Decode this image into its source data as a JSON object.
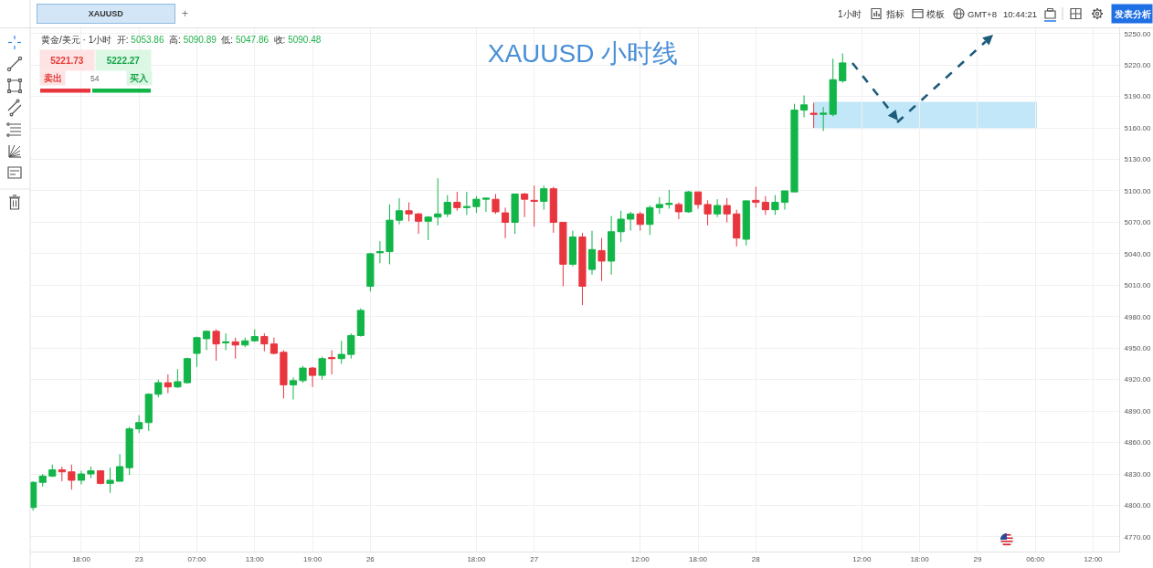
{
  "chart_data": {
    "type": "candlestick",
    "title": "XAUUSD 小时线",
    "annotations": [
      "XAUUSD",
      "+",
      "1小时",
      "指标",
      "模板",
      "GMT+8",
      "10:44:21",
      "发表分析",
      "黄金/美元 · 1小时",
      "开:",
      "5053.86",
      "高:",
      "5090.89",
      "低:",
      "5047.86",
      "收:",
      "5090.48",
      "5221.73",
      "5222.27",
      "卖出",
      "54",
      "买入"
    ],
    "categories": [
      null,
      null,
      null,
      null,
      null,
      "18:00",
      null,
      null,
      null,
      null,
      null,
      "23",
      null,
      null,
      null,
      null,
      null,
      "07:00",
      null,
      null,
      null,
      null,
      null,
      "13:00",
      null,
      null,
      null,
      null,
      null,
      "19:00",
      null,
      null,
      null,
      null,
      null,
      "26",
      null,
      null,
      null,
      null,
      null,
      null,
      null,
      null,
      null,
      null,
      "18:00",
      null,
      null,
      null,
      null,
      null,
      "27",
      null,
      null,
      null,
      null,
      null,
      null,
      null,
      null,
      null,
      null,
      "12:00",
      null,
      null,
      null,
      null,
      null,
      "18:00",
      null,
      null,
      null,
      null,
      null,
      "28",
      null,
      null,
      null,
      null,
      null,
      null,
      null,
      null,
      null,
      null,
      "12:00",
      null,
      null,
      null,
      null,
      null,
      "18:00",
      null,
      null,
      null,
      null,
      null,
      "29",
      null,
      null,
      null,
      null,
      null,
      "06:00",
      null,
      null,
      null,
      null,
      null,
      "12:00",
      null,
      null
    ],
    "ohlc": [
      [
        4798,
        4823,
        4795,
        4822
      ],
      [
        4822,
        4830,
        4818,
        4828
      ],
      [
        4828,
        4839,
        4827,
        4834
      ],
      [
        4834,
        4837,
        4823,
        4832
      ],
      [
        4832,
        4839,
        4815,
        4824
      ],
      [
        4824,
        4833,
        4820,
        4830
      ],
      [
        4830,
        4837,
        4826,
        4833
      ],
      [
        4833,
        4833,
        4820,
        4821
      ],
      [
        4821,
        4836,
        4812,
        4824
      ],
      [
        4823,
        4849,
        4823,
        4837
      ],
      [
        4836,
        4875,
        4829,
        4873
      ],
      [
        4873,
        4886,
        4869,
        4879
      ],
      [
        4879,
        4907,
        4871,
        4906
      ],
      [
        4906,
        4920,
        4903,
        4917
      ],
      [
        4917,
        4925,
        4907,
        4913
      ],
      [
        4913,
        4930,
        4912,
        4918
      ],
      [
        4917,
        4941,
        4916,
        4940
      ],
      [
        4945,
        4961,
        4932,
        4960
      ],
      [
        4959,
        4967,
        4948,
        4966
      ],
      [
        4966,
        4968,
        4938,
        4954
      ],
      [
        4955,
        4964,
        4948,
        4956
      ],
      [
        4956,
        4960,
        4940,
        4953
      ],
      [
        4953,
        4960,
        4951,
        4957
      ],
      [
        4957,
        4968,
        4956,
        4961
      ],
      [
        4961,
        4964,
        4947,
        4954
      ],
      [
        4954,
        4960,
        4944,
        4945
      ],
      [
        4946,
        4948,
        4902,
        4915
      ],
      [
        4915,
        4922,
        4901,
        4919
      ],
      [
        4919,
        4933,
        4917,
        4931
      ],
      [
        4931,
        4932,
        4913,
        4924
      ],
      [
        4924,
        4942,
        4920,
        4940
      ],
      [
        4941,
        4948,
        4925,
        4940
      ],
      [
        4940,
        4957,
        4935,
        4944
      ],
      [
        4944,
        4964,
        4940,
        4962
      ],
      [
        4962,
        4988,
        4961,
        4986
      ],
      [
        5009,
        5041,
        5004,
        5040
      ],
      [
        5041,
        5052,
        5031,
        5042
      ],
      [
        5042,
        5087,
        5030,
        5072
      ],
      [
        5072,
        5093,
        5068,
        5081
      ],
      [
        5081,
        5089,
        5071,
        5078
      ],
      [
        5078,
        5079,
        5059,
        5071
      ],
      [
        5071,
        5076,
        5053,
        5075
      ],
      [
        5075,
        5112,
        5067,
        5078
      ],
      [
        5078,
        5096,
        5075,
        5089
      ],
      [
        5089,
        5099,
        5081,
        5084
      ],
      [
        5084,
        5099,
        5077,
        5085
      ],
      [
        5085,
        5095,
        5079,
        5092
      ],
      [
        5092,
        5093,
        5080,
        5093
      ],
      [
        5092,
        5097,
        5078,
        5080
      ],
      [
        5079,
        5084,
        5055,
        5070
      ],
      [
        5070,
        5097,
        5059,
        5097
      ],
      [
        5097,
        5098,
        5075,
        5092
      ],
      [
        5091,
        5105,
        5066,
        5090
      ],
      [
        5090,
        5105,
        5082,
        5102
      ],
      [
        5102,
        5104,
        5060,
        5070
      ],
      [
        5070,
        5070,
        5009,
        5030
      ],
      [
        5030,
        5062,
        5028,
        5056
      ],
      [
        5056,
        5060,
        4991,
        5009
      ],
      [
        5025,
        5062,
        5020,
        5044
      ],
      [
        5043,
        5055,
        5014,
        5033
      ],
      [
        5033,
        5076,
        5020,
        5061
      ],
      [
        5061,
        5081,
        5051,
        5073
      ],
      [
        5073,
        5080,
        5062,
        5078
      ],
      [
        5078,
        5080,
        5062,
        5068
      ],
      [
        5068,
        5086,
        5058,
        5084
      ],
      [
        5084,
        5094,
        5078,
        5087
      ],
      [
        5087,
        5101,
        5083,
        5088
      ],
      [
        5087,
        5089,
        5073,
        5080
      ],
      [
        5080,
        5100,
        5079,
        5099
      ],
      [
        5099,
        5099,
        5083,
        5087
      ],
      [
        5087,
        5091,
        5067,
        5078
      ],
      [
        5078,
        5092,
        5075,
        5086
      ],
      [
        5086,
        5093,
        5070,
        5078
      ],
      [
        5078,
        5082,
        5047,
        5055
      ],
      [
        5053.86,
        5090.89,
        5047.86,
        5090.48
      ],
      [
        5091,
        5104,
        5084,
        5089
      ],
      [
        5089,
        5095,
        5077,
        5082
      ],
      [
        5082,
        5096,
        5077,
        5089
      ],
      [
        5089,
        5100,
        5082,
        5100
      ],
      [
        5099,
        5183,
        5099,
        5177
      ],
      [
        5177,
        5191,
        5170,
        5182
      ],
      [
        5174,
        5184,
        5160,
        5173
      ],
      [
        5173,
        5180,
        5157,
        5174
      ],
      [
        5173,
        5226,
        5171,
        5206
      ],
      [
        5205,
        5231,
        5203,
        5222
      ],
      null,
      null,
      null,
      null,
      null,
      null,
      null,
      null,
      null,
      null,
      null,
      null,
      null,
      null,
      null,
      null,
      null,
      null,
      null,
      null,
      null,
      null,
      null,
      null,
      null,
      null,
      null,
      null
    ],
    "colors": [
      "#12b548",
      "#12b548",
      "#12b548",
      "#e8363f",
      "#e8363f",
      "#12b548",
      "#12b548",
      "#e8363f",
      "#12b548",
      "#12b548",
      "#12b548",
      "#12b548",
      "#12b548",
      "#12b548",
      "#e8363f",
      "#12b548",
      "#12b548",
      "#12b548",
      "#12b548",
      "#e8363f",
      "#12b548",
      "#e8363f",
      "#12b548",
      "#12b548",
      "#e8363f",
      "#e8363f",
      "#e8363f",
      "#12b548",
      "#12b548",
      "#e8363f",
      "#12b548",
      "#e8363f",
      "#12b548",
      "#12b548",
      "#12b548",
      "#12b548",
      "#12b548",
      "#12b548",
      "#12b548",
      "#e8363f",
      "#e8363f",
      "#12b548",
      "#12b548",
      "#12b548",
      "#e8363f",
      "#12b548",
      "#12b548",
      "#12b548",
      "#e8363f",
      "#e8363f",
      "#12b548",
      "#e8363f",
      "#e8363f",
      "#12b548",
      "#e8363f",
      "#e8363f",
      "#12b548",
      "#e8363f",
      "#12b548",
      "#e8363f",
      "#12b548",
      "#12b548",
      "#12b548",
      "#e8363f",
      "#12b548",
      "#12b548",
      "#12b548",
      "#e8363f",
      "#12b548",
      "#e8363f",
      "#e8363f",
      "#12b548",
      "#e8363f",
      "#e8363f",
      "#12b548",
      "#e8363f",
      "#e8363f",
      "#12b548",
      "#12b548",
      "#12b548",
      "#12b548",
      "#e8363f",
      "#12b548",
      "#12b548",
      "#12b548",
      null,
      null,
      null,
      null,
      null,
      null,
      null,
      null,
      null,
      null,
      null,
      null,
      null,
      null,
      null,
      null,
      null,
      null,
      null,
      null,
      null,
      null,
      null,
      null,
      null,
      null,
      null,
      null
    ],
    "ylim": [
      4756,
      5255
    ],
    "yticks": [
      {
        "value": 4770,
        "label": "4770.00"
      },
      {
        "value": 4800,
        "label": "4800.00"
      },
      {
        "value": 4830,
        "label": "4830.00"
      },
      {
        "value": 4860,
        "label": "4860.00"
      },
      {
        "value": 4890,
        "label": "4890.00"
      },
      {
        "value": 4920,
        "label": "4920.00"
      },
      {
        "value": 4950,
        "label": "4950.00"
      },
      {
        "value": 4980,
        "label": "4980.00"
      },
      {
        "value": 5010,
        "label": "5010.00"
      },
      {
        "value": 5040,
        "label": "5040.00"
      },
      {
        "value": 5070,
        "label": "5070.00"
      },
      {
        "value": 5100,
        "label": "5100.00"
      },
      {
        "value": 5130,
        "label": "5130.00"
      },
      {
        "value": 5160,
        "label": "5160.00"
      },
      {
        "value": 5190,
        "label": "5190.00"
      },
      {
        "value": 5220,
        "label": "5220.00"
      },
      {
        "value": 5250,
        "label": "5250.00"
      }
    ],
    "bands": [
      {
        "axis": "y",
        "from": 5159,
        "to": 5185,
        "color": "#c2e7f8"
      }
    ],
    "grid": true
  }
}
